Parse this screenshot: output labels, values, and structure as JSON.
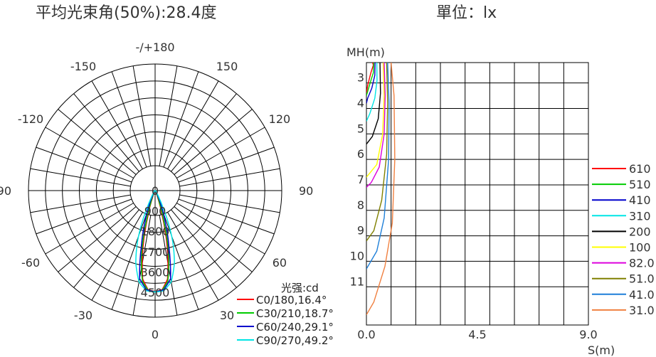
{
  "chart_data": [
    {
      "type": "polar",
      "title": "平均光束角(50%):28.4度",
      "angle_labels": [
        {
          "angle": 180,
          "label": "-/+180"
        },
        {
          "angle": -150,
          "label": "-150"
        },
        {
          "angle": 150,
          "label": "150"
        },
        {
          "angle": -120,
          "label": "-120"
        },
        {
          "angle": 120,
          "label": "120"
        },
        {
          "angle": -90,
          "label": "-90"
        },
        {
          "angle": 90,
          "label": "90"
        },
        {
          "angle": -60,
          "label": "-60"
        },
        {
          "angle": 60,
          "label": "60"
        },
        {
          "angle": -30,
          "label": "-30"
        },
        {
          "angle": 30,
          "label": "30"
        },
        {
          "angle": 0,
          "label": "0"
        }
      ],
      "radial_ticks": [
        "0",
        "900",
        "1800",
        "2700",
        "3600",
        "4500"
      ],
      "rmax": 4500,
      "unit_label": "光强:cd",
      "series": [
        {
          "name": "C0/180,16.4°",
          "color": "#ff0000",
          "intensity": [
            [
              0,
              4460
            ],
            [
              4,
              4400
            ],
            [
              8,
              3950
            ],
            [
              12,
              2600
            ],
            [
              16,
              1100
            ],
            [
              20,
              350
            ],
            [
              25,
              120
            ],
            [
              35,
              40
            ],
            [
              50,
              10
            ],
            [
              90,
              0
            ]
          ]
        },
        {
          "name": "C30/210,18.7°",
          "color": "#00cc00",
          "intensity": [
            [
              0,
              4470
            ],
            [
              4,
              4420
            ],
            [
              8,
              4050
            ],
            [
              12,
              2900
            ],
            [
              16,
              1400
            ],
            [
              20,
              520
            ],
            [
              25,
              180
            ],
            [
              35,
              60
            ],
            [
              50,
              15
            ],
            [
              90,
              0
            ]
          ]
        },
        {
          "name": "C60/240,29.1°",
          "color": "#0000cc",
          "intensity": [
            [
              0,
              4480
            ],
            [
              5,
              4400
            ],
            [
              10,
              3950
            ],
            [
              14,
              2500
            ],
            [
              18,
              1450
            ],
            [
              22,
              700
            ],
            [
              26,
              300
            ],
            [
              32,
              110
            ],
            [
              45,
              30
            ],
            [
              90,
              0
            ]
          ]
        },
        {
          "name": "C90/270,49.2°",
          "color": "#00e5e5",
          "intensity": [
            [
              0,
              4490
            ],
            [
              5,
              4450
            ],
            [
              10,
              4100
            ],
            [
              15,
              3300
            ],
            [
              19,
              2400
            ],
            [
              22,
              1600
            ],
            [
              25,
              800
            ],
            [
              28,
              400
            ],
            [
              33,
              170
            ],
            [
              45,
              50
            ],
            [
              90,
              0
            ]
          ]
        }
      ]
    },
    {
      "type": "line",
      "title": "單位：lx",
      "xlabel": "S(m)",
      "ylabel": "MH(m)",
      "xlim": [
        0,
        9.0
      ],
      "ylim": [
        2.2,
        12.5
      ],
      "x_ticks": [
        "0.0",
        "4.5",
        "9.0"
      ],
      "y_ticks": [
        3,
        4,
        5,
        6,
        7,
        8,
        9,
        10,
        11
      ],
      "series": [
        {
          "name": "610",
          "color": "#ff0000",
          "points": [
            [
              0.25,
              2.2
            ],
            [
              0.28,
              2.3
            ],
            [
              0.18,
              2.6
            ],
            [
              0.05,
              3.1
            ],
            [
              0.0,
              3.4
            ]
          ]
        },
        {
          "name": "510",
          "color": "#00cc00",
          "points": [
            [
              0.3,
              2.2
            ],
            [
              0.28,
              2.6
            ],
            [
              0.15,
              3.0
            ],
            [
              0.0,
              3.5
            ]
          ]
        },
        {
          "name": "410",
          "color": "#0000cc",
          "points": [
            [
              0.35,
              2.2
            ],
            [
              0.34,
              2.7
            ],
            [
              0.22,
              3.2
            ],
            [
              0.05,
              3.6
            ],
            [
              0.0,
              3.8
            ]
          ]
        },
        {
          "name": "310",
          "color": "#00e5e5",
          "points": [
            [
              0.42,
              2.2
            ],
            [
              0.43,
              2.9
            ],
            [
              0.34,
              3.6
            ],
            [
              0.14,
              4.2
            ],
            [
              0.0,
              4.5
            ]
          ]
        },
        {
          "name": "200",
          "color": "#000000",
          "points": [
            [
              0.55,
              2.2
            ],
            [
              0.57,
              3.4
            ],
            [
              0.48,
              4.4
            ],
            [
              0.24,
              5.1
            ],
            [
              0.0,
              5.4
            ]
          ]
        },
        {
          "name": "100",
          "color": "#ffff00",
          "points": [
            [
              0.68,
              2.2
            ],
            [
              0.72,
              3.5
            ],
            [
              0.66,
              5.0
            ],
            [
              0.42,
              6.2
            ],
            [
              0.0,
              6.7
            ]
          ]
        },
        {
          "name": "82.0",
          "color": "#dd00dd",
          "points": [
            [
              0.72,
              2.2
            ],
            [
              0.76,
              3.5
            ],
            [
              0.72,
              5.0
            ],
            [
              0.52,
              6.3
            ],
            [
              0.2,
              6.9
            ],
            [
              0.0,
              7.1
            ]
          ]
        },
        {
          "name": "51.0",
          "color": "#808000",
          "points": [
            [
              0.82,
              2.2
            ],
            [
              0.86,
              3.8
            ],
            [
              0.82,
              5.8
            ],
            [
              0.62,
              7.6
            ],
            [
              0.3,
              8.8
            ],
            [
              0.0,
              9.2
            ]
          ]
        },
        {
          "name": "41.0",
          "color": "#1e7fd8",
          "points": [
            [
              0.86,
              2.2
            ],
            [
              0.92,
              3.8
            ],
            [
              0.9,
              6.0
            ],
            [
              0.72,
              8.3
            ],
            [
              0.42,
              9.6
            ],
            [
              0.0,
              10.3
            ]
          ]
        },
        {
          "name": "31.0",
          "color": "#f08040",
          "points": [
            [
              1.0,
              2.2
            ],
            [
              1.12,
              3.5
            ],
            [
              1.15,
              6.0
            ],
            [
              1.05,
              8.5
            ],
            [
              0.75,
              10.2
            ],
            [
              0.3,
              11.6
            ],
            [
              0.0,
              12.1
            ]
          ]
        }
      ]
    }
  ]
}
